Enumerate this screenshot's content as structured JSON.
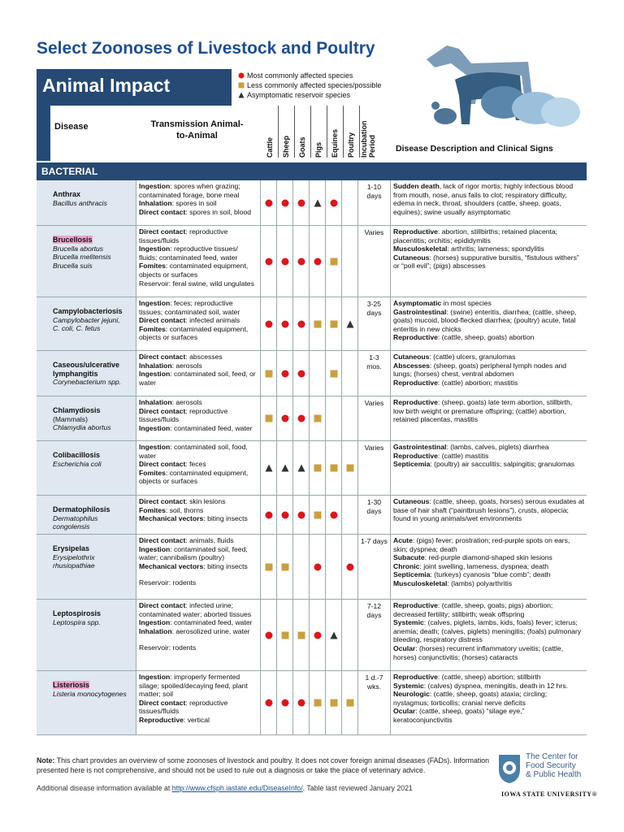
{
  "header": {
    "title": "Select Zoonoses of Livestock and Poultry",
    "banner": "Animal Impact",
    "legend": [
      {
        "symbol": "circle",
        "label": "Most commonly affected species"
      },
      {
        "symbol": "square",
        "label": "Less commonly affected species/possible"
      },
      {
        "symbol": "triangle",
        "label": "Asymptomatic reservoir species"
      }
    ]
  },
  "table": {
    "columns": {
      "disease": "Disease",
      "transmission": "Transmission Animal-to-Animal",
      "species": [
        "Cattle",
        "Sheep",
        "Goats",
        "Pigs",
        "Equines",
        "Poultry"
      ],
      "incubation": "Incubation Period",
      "description": "Disease Description and Clinical Signs"
    },
    "section": "BACTERIAL",
    "rows": [
      {
        "name": "Anthrax",
        "scientific": [
          "Bacillus anthracis"
        ],
        "transmission": [
          {
            "label": "Ingestion",
            "text": ": spores when grazing; contaminated forage, bone meal"
          },
          {
            "label": "Inhalation",
            "text": ": spores in soil"
          },
          {
            "label": "Direct contact",
            "text": ": spores in soil, blood"
          }
        ],
        "symbols": [
          "circle",
          "circle",
          "circle",
          "triangle",
          "circle",
          null
        ],
        "incubation": "1-10 days",
        "description": [
          {
            "label": "Sudden death",
            "text": ", lack of rigor mortis; highly infectious blood from mouth, nose, anus fails to clot; respiratory difficulty, edema in neck, throat, shoulders (cattle, sheep, goats, equines); swine usually asymptomatic"
          }
        ]
      },
      {
        "name": "Brucellosis",
        "highlight": true,
        "scientific": [
          "Brucella abortus",
          "Brucella melitensis",
          "Brucella suis"
        ],
        "transmission": [
          {
            "label": "Direct contact",
            "text": ": reproductive tissues/fluids"
          },
          {
            "label": "Ingestion",
            "text": ": reproductive tissues/ fluids; contaminated feed, water"
          },
          {
            "label": "Fomites",
            "text": ": contaminated equipment, objects or surfaces"
          },
          {
            "text": "Reservoir: feral swine, wild ungulates"
          }
        ],
        "symbols": [
          "circle",
          "circle",
          "circle",
          "circle",
          "square",
          null
        ],
        "incubation": "Varies",
        "description": [
          {
            "label": "Reproductive",
            "text": ": abortion, stillbirths; retained placenta; placentitis; orchitis; epididymitis"
          },
          {
            "label": "Musculoskeletal",
            "text": ": arthritis; lameness; spondylitis"
          },
          {
            "label": "Cutaneous",
            "text": ": (horses) suppurative bursitis, “fistulous withers” or “poll evil”; (pigs) abscesses"
          }
        ]
      },
      {
        "name": "Campylobacteriosis",
        "scientific": [
          "Campylobacter jejuni,",
          "C. coli, C. fetus"
        ],
        "transmission": [
          {
            "label": "Ingestion",
            "text": ": feces; reproductive tissues; contaminated soil, water"
          },
          {
            "label": "Direct contact",
            "text": ": infected animals"
          },
          {
            "label": "Fomites",
            "text": ": contaminated equipment, objects or surfaces"
          }
        ],
        "symbols": [
          "circle",
          "circle",
          "circle",
          "square",
          "square",
          "triangle"
        ],
        "incubation": "3-25 days",
        "description": [
          {
            "label": "Asymptomatic",
            "text": " in most species"
          },
          {
            "label": "Gastrointestinal",
            "text": ": (swine) enteritis, diarrhea; (cattle, sheep, goats) mucoid, blood-flecked diarrhea; (poultry) acute, fatal enteritis in new chicks"
          },
          {
            "label": "Reproductive",
            "text": ": (cattle, sheep, goats) abortion"
          }
        ]
      },
      {
        "name": "Caseous/ulcerative lymphangitis",
        "scientific": [
          "Corynebacterium spp."
        ],
        "transmission": [
          {
            "label": "Direct contact",
            "text": ": abscesses"
          },
          {
            "label": "Inhalation",
            "text": ": aerosols"
          },
          {
            "label": "Ingestion",
            "text": ": contaminated soil, feed, or water"
          }
        ],
        "symbols": [
          "square",
          "circle",
          "circle",
          null,
          "square",
          null
        ],
        "incubation": "1-3 mos.",
        "description": [
          {
            "label": "Cutaneous",
            "text": ": (cattle) ulcers, granulomas"
          },
          {
            "label": "Abscesses",
            "text": ": (sheep, goats) peripheral lymph nodes and lungs; (horses) chest, ventral abdomen"
          },
          {
            "label": "Reproductive",
            "text": ": (cattle) abortion; mastitis"
          }
        ]
      },
      {
        "name": "Chlamydiosis",
        "note": "(Mammals)",
        "scientific": [
          "Chlamydia abortus"
        ],
        "transmission": [
          {
            "label": "Inhalation",
            "text": ": aerosols"
          },
          {
            "label": "Direct contact",
            "text": ": reproductive tissues/fluids"
          },
          {
            "label": "Ingestion",
            "text": ": contaminated feed, water"
          }
        ],
        "symbols": [
          "square",
          "circle",
          "circle",
          "square",
          null,
          null
        ],
        "incubation": "Varies",
        "description": [
          {
            "label": "Reproductive",
            "text": ": (sheep, goats) late term abortion, stillbirth, low birth weight or premature offspring; (cattle) abortion, retained placentas, mastitis"
          }
        ]
      },
      {
        "name": "Colibacillosis",
        "scientific": [
          "Escherichia coli"
        ],
        "transmission": [
          {
            "label": "Ingestion",
            "text": ": contaminated soil, food, water"
          },
          {
            "label": "Direct contact",
            "text": ": feces"
          },
          {
            "label": "Fomites",
            "text": ": contaminated equipment, objects or surfaces"
          }
        ],
        "symbols": [
          "triangle",
          "triangle",
          "triangle",
          "square",
          "square",
          "square"
        ],
        "incubation": "Varies",
        "description": [
          {
            "label": "Gastrointestinal",
            "text": ": (lambs, calves, piglets) diarrhea"
          },
          {
            "label": "Reproductive",
            "text": ": (cattle) mastitis"
          },
          {
            "label": "Septicemia",
            "text": ": (poultry) air sacculitis; salpingitis; granulomas"
          }
        ]
      },
      {
        "name": "Dermatophilosis",
        "scientific": [
          "Dermatophilus congolensis"
        ],
        "transmission": [
          {
            "label": "Direct contact",
            "text": ": skin lesions"
          },
          {
            "label": "Fomites",
            "text": ": soil, thorns"
          },
          {
            "label": "Mechanical vectors",
            "text": ": biting insects"
          }
        ],
        "symbols": [
          "circle",
          "circle",
          "circle",
          "square",
          "circle",
          null
        ],
        "incubation": "1-30 days",
        "description": [
          {
            "label": "Cutaneous",
            "text": ": (cattle, sheep, goats, horses) serous exudates at base of hair shaft (“paintbrush lesions”), crusts, alopecia; found in young animals/wet environments"
          }
        ]
      },
      {
        "name": "Erysipelas",
        "scientific": [
          "Erysipelothrix rhusiopathiae"
        ],
        "transmission": [
          {
            "label": "Direct contact",
            "text": ": animals, fluids"
          },
          {
            "label": "Ingestion",
            "text": ": contaminated soil, feed, water; cannibalism (poultry)"
          },
          {
            "label": "Mechanical vectors",
            "text": ": biting insects"
          },
          {
            "text": "Reservoir: rodents",
            "gap": true
          }
        ],
        "symbols": [
          "square",
          "square",
          null,
          "circle",
          null,
          "circle"
        ],
        "incubation": "1-7 days",
        "description": [
          {
            "label": "Acute",
            "text": ": (pigs) fever; prostration; red-purple spots on ears, skin; dyspnea; death"
          },
          {
            "label": "Subacute",
            "text": ": red-purple diamond-shaped skin lesions"
          },
          {
            "label": "Chronic",
            "text": ": joint swelling, lameness, dyspnea; death"
          },
          {
            "label": "Septicemia",
            "text": ": (turkeys) cyanosis “blue comb”; death"
          },
          {
            "label": "Musculoskeletal",
            "text": ": (lambs) polyarthritis"
          }
        ]
      },
      {
        "name": "Leptospirosis",
        "scientific": [
          "Leptospira spp."
        ],
        "transmission": [
          {
            "label": "Direct contact",
            "text": ": infected urine; contaminated water; aborted tissues"
          },
          {
            "label": "Ingestion",
            "text": ": contaminated feed, water"
          },
          {
            "label": "Inhalation",
            "text": ": aerosolized urine, water"
          },
          {
            "text": "Reservoir: rodents",
            "gap": true
          }
        ],
        "symbols": [
          "circle",
          "square",
          "square",
          "circle",
          "triangle",
          null
        ],
        "incubation": "7-12 days",
        "description": [
          {
            "label": "Reproductive",
            "text": ": (cattle, sheep, goats, pigs) abortion; decreased fertility; stillbirth; weak offspring"
          },
          {
            "label": "Systemic",
            "text": ": (calves, piglets, lambs, kids, foals) fever; icterus; anemia; death; (calves, piglets) meningitis; (foals) pulmonary bleeding, respiratory distress"
          },
          {
            "label": "Ocular",
            "text": ": (horses) recurrent inflammatory uveitis; (cattle, horses) conjunctivitis; (horses) cataracts"
          }
        ]
      },
      {
        "name": "Listeriosis",
        "highlight": true,
        "scientific": [
          "Listeria monocytogenes"
        ],
        "transmission": [
          {
            "label": "Ingestion",
            "text": ": improperly fermented silage; spoiled/decaying feed, plant matter; soil"
          },
          {
            "label": "Direct contact",
            "text": ": reproductive tissues/fluids"
          },
          {
            "label": "Reproductive",
            "text": ": vertical"
          }
        ],
        "symbols": [
          "circle",
          "circle",
          "circle",
          "square",
          "square",
          "square"
        ],
        "incubation": "1 d.-7 wks.",
        "description": [
          {
            "label": "Reproductive",
            "text": ": (cattle, sheep) abortion; stillbirth"
          },
          {
            "label": "Systemic",
            "text": ": (calves) dyspnea, meningitis, death in 12 hrs."
          },
          {
            "label": "Neurologic",
            "text": ": (cattle, sheep, goats) ataxia; circling; nystagmus; torticollis; cranial nerve deficits"
          },
          {
            "label": "Ocular",
            "text": ": (cattle, sheep, goats) “silage eye,” keratoconjunctivitis"
          }
        ]
      }
    ]
  },
  "footer": {
    "note_label": "Note:",
    "note": "This chart provides an overview of some zoonoses of livestock and poultry. It does not cover foreign animal diseases (FADs). Information presented here is not comprehensive, and should not be used to rule out a diagnosis or take the place of veterinary advice.",
    "more_prefix": "Additional disease information available at ",
    "link": "http://www.cfsph.iastate.edu/DiseaseInfo/",
    "more_suffix": ". Table last reviewed January 2021",
    "logo": [
      "The Center for",
      "Food Security",
      "& Public Health"
    ],
    "university": "IOWA STATE UNIVERSITY®"
  }
}
